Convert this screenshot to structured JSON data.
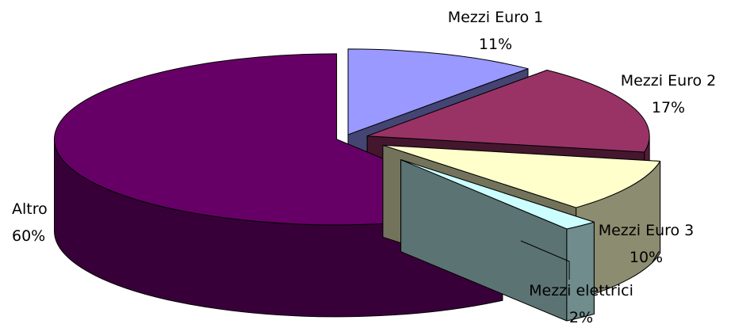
{
  "chart_data": {
    "type": "pie",
    "style": "3d-exploded",
    "title": "",
    "legend": "none",
    "slices": [
      {
        "name": "Mezzi Euro 1",
        "value": 11,
        "label": "11%",
        "color": "#9999ff"
      },
      {
        "name": "Mezzi Euro 2",
        "value": 17,
        "label": "17%",
        "color": "#993366"
      },
      {
        "name": "Mezzi Euro 3",
        "value": 10,
        "label": "10%",
        "color": "#ffffcc"
      },
      {
        "name": "Mezzi elettrici",
        "value": 2,
        "label": "2%",
        "color": "#ccffff"
      },
      {
        "name": "Altro",
        "value": 60,
        "label": "60%",
        "color": "#660066"
      }
    ]
  }
}
